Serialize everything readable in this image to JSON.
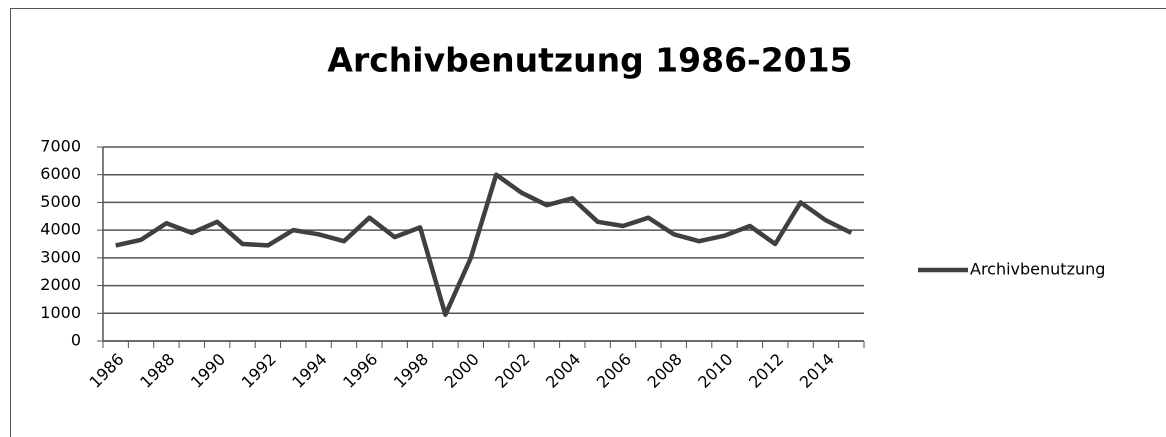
{
  "chart_data": {
    "type": "line",
    "title": "Archivbenutzung 1986-2015",
    "categories": [
      "1986",
      null,
      "1988",
      null,
      "1990",
      null,
      "1992",
      null,
      "1994",
      null,
      "1996",
      null,
      "1998",
      null,
      "2000",
      null,
      "2002",
      null,
      "2004",
      null,
      "2006",
      null,
      "2008",
      null,
      "2010",
      null,
      "2012",
      null,
      "2014",
      null
    ],
    "series": [
      {
        "name": "Archivbenutzung",
        "color": "#404040",
        "values": [
          3450,
          3650,
          4250,
          3900,
          4300,
          3500,
          3450,
          4000,
          3850,
          3600,
          4450,
          3750,
          4100,
          950,
          3000,
          6000,
          5350,
          4900,
          5150,
          4300,
          4150,
          4450,
          3850,
          3600,
          3800,
          4150,
          3500,
          5000,
          4350,
          3900
        ]
      }
    ],
    "ylim": [
      0,
      7000
    ],
    "yticks": [
      0,
      1000,
      2000,
      3000,
      4000,
      5000,
      6000,
      7000
    ],
    "grid": true,
    "legend": "right"
  }
}
